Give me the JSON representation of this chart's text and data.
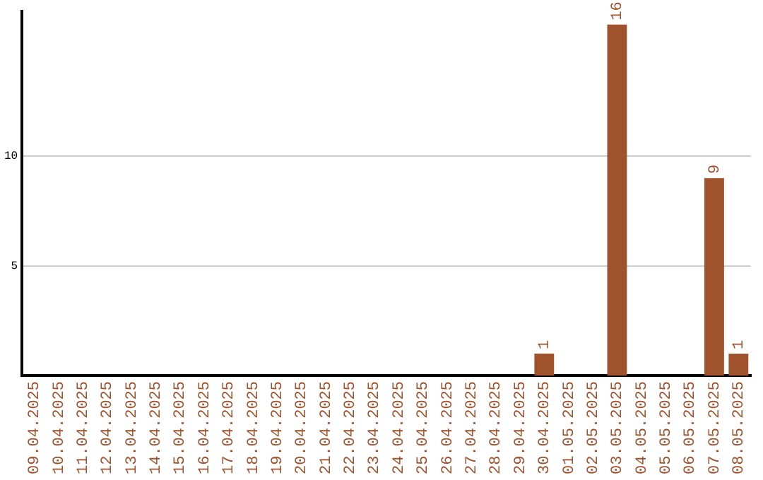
{
  "chart_data": {
    "type": "bar",
    "categories": [
      "09.04.2025",
      "10.04.2025",
      "11.04.2025",
      "12.04.2025",
      "13.04.2025",
      "14.04.2025",
      "15.04.2025",
      "16.04.2025",
      "17.04.2025",
      "18.04.2025",
      "19.04.2025",
      "20.04.2025",
      "21.04.2025",
      "22.04.2025",
      "23.04.2025",
      "24.04.2025",
      "25.04.2025",
      "26.04.2025",
      "27.04.2025",
      "28.04.2025",
      "29.04.2025",
      "30.04.2025",
      "01.05.2025",
      "02.05.2025",
      "03.05.2025",
      "04.05.2025",
      "05.05.2025",
      "06.05.2025",
      "07.05.2025",
      "08.05.2025"
    ],
    "values": [
      0,
      0,
      0,
      0,
      0,
      0,
      0,
      0,
      0,
      0,
      0,
      0,
      0,
      0,
      0,
      0,
      0,
      0,
      0,
      0,
      0,
      1,
      0,
      0,
      16,
      0,
      0,
      0,
      9,
      1
    ],
    "value_labels": [
      null,
      null,
      null,
      null,
      null,
      null,
      null,
      null,
      null,
      null,
      null,
      null,
      null,
      null,
      null,
      null,
      null,
      null,
      null,
      null,
      null,
      "1",
      null,
      null,
      "16",
      null,
      null,
      null,
      "9",
      "1"
    ],
    "color": "#a0522d",
    "ylim": [
      0,
      16.6
    ],
    "yticks": [
      5,
      10
    ],
    "grid": "y",
    "legend": false
  }
}
